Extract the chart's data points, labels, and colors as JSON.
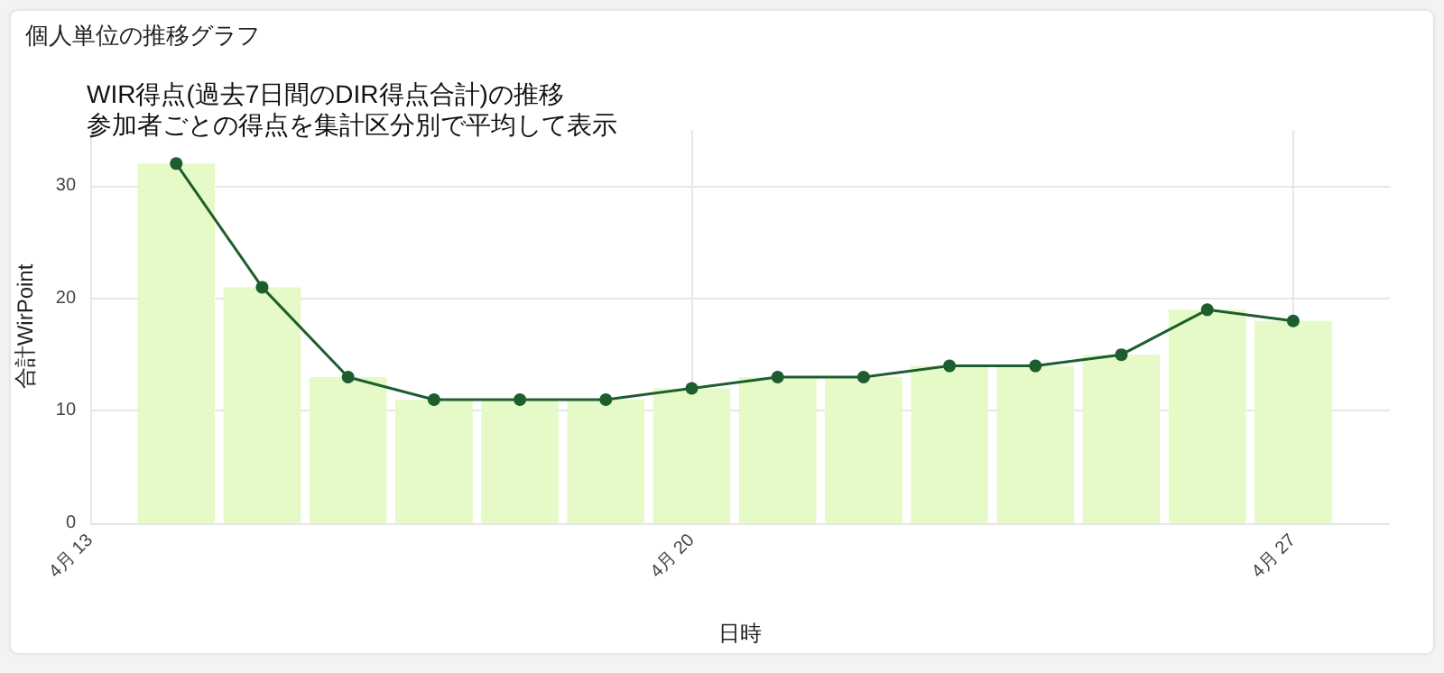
{
  "chart_data": {
    "type": "bar",
    "title": "WIR得点(過去7日間のDIR得点合計)の推移",
    "subtitle": "参加者ごとの得点を集計区分別で平均して表示",
    "annotations": [
      "個人単位の推移グラフ"
    ],
    "xlabel": "日時",
    "ylabel": "合計WirPoint",
    "x": [
      "--04-14",
      "--04-15",
      "--04-16",
      "--04-17",
      "--04-18",
      "--04-19",
      "--04-20",
      "--04-21",
      "--04-22",
      "--04-23",
      "--04-24",
      "--04-25",
      "--04-26",
      "--04-27"
    ],
    "series": [
      {
        "color": "#e6fac8",
        "values": [
          32,
          21,
          13,
          11,
          11,
          11,
          12,
          13,
          13,
          14,
          14,
          15,
          19,
          18
        ]
      },
      {
        "type": "line",
        "color": "#1e5e2e",
        "marker": "circle",
        "values": [
          32,
          21,
          13,
          11,
          11,
          11,
          12,
          13,
          13,
          14,
          14,
          15,
          19,
          18
        ]
      }
    ],
    "xlim": [
      "--04-13",
      "--04-28T03:00"
    ],
    "xticks": [
      {
        "value": "--04-13",
        "label": "4月 13"
      },
      {
        "value": "--04-20",
        "label": "4月 20"
      },
      {
        "value": "--04-27",
        "label": "4月 27"
      }
    ],
    "ylim": [
      0,
      35
    ],
    "yticks": [
      0,
      10,
      20,
      30
    ],
    "grid": true
  }
}
